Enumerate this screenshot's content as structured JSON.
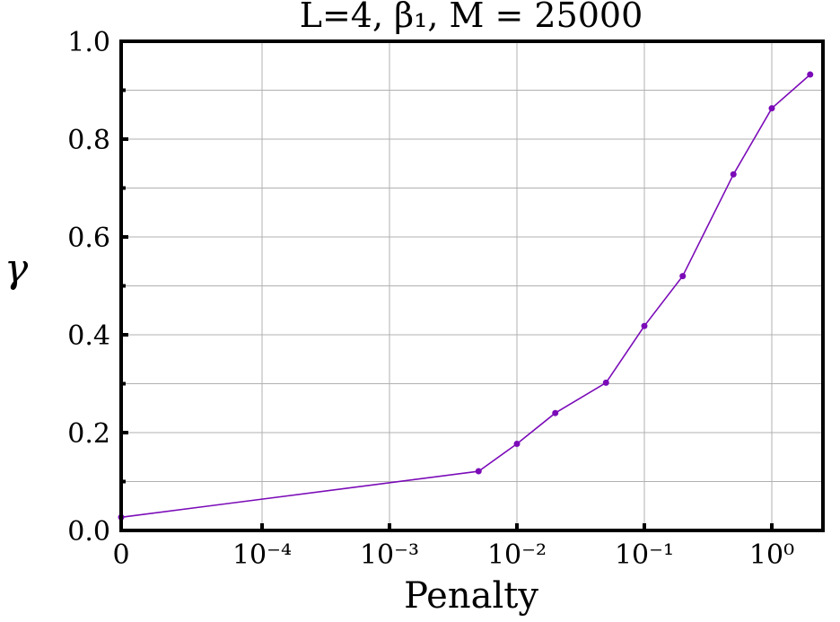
{
  "chart_data": {
    "type": "line",
    "title": "L=4, β₁, M = 25000",
    "xlabel": "Penalty",
    "ylabel": "γ",
    "xscale": "symlog",
    "xticks": [
      {
        "value": 0,
        "label": "0"
      },
      {
        "value": 0.0001,
        "label": "10⁻⁴"
      },
      {
        "value": 0.001,
        "label": "10⁻³"
      },
      {
        "value": 0.01,
        "label": "10⁻²"
      },
      {
        "value": 0.1,
        "label": "10⁻¹"
      },
      {
        "value": 1,
        "label": "10⁰"
      }
    ],
    "yticks": [
      {
        "value": 0.0,
        "label": "0.0"
      },
      {
        "value": 0.2,
        "label": "0.2"
      },
      {
        "value": 0.4,
        "label": "0.4"
      },
      {
        "value": 0.6,
        "label": "0.6"
      },
      {
        "value": 0.8,
        "label": "0.8"
      },
      {
        "value": 1.0,
        "label": "1.0"
      }
    ],
    "ylim": [
      0,
      1
    ],
    "grid": true,
    "series": [
      {
        "color": "#7b0bb8",
        "x": [
          0,
          0.005,
          0.01,
          0.02,
          0.05,
          0.1,
          0.2,
          0.5,
          1,
          2
        ],
        "y": [
          0.027,
          0.121,
          0.177,
          0.24,
          0.302,
          0.418,
          0.52,
          0.728,
          0.863,
          0.932
        ]
      }
    ]
  }
}
